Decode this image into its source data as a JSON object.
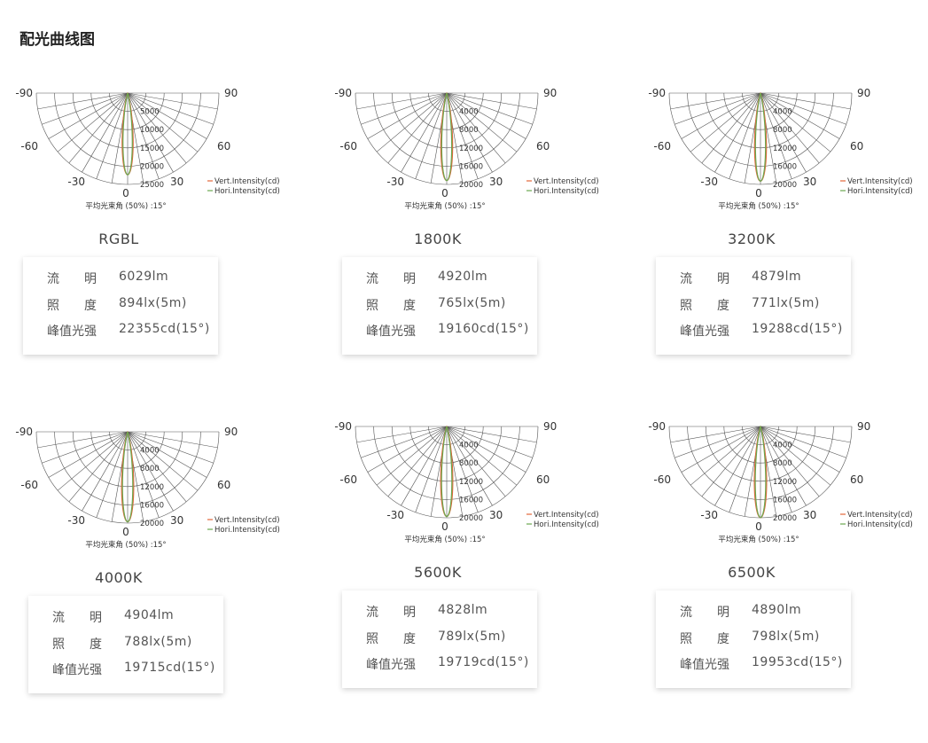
{
  "page_title": "配光曲线图",
  "colors": {
    "vertical": "#e2663a",
    "horizontal": "#6aa84f",
    "grid": "#555555"
  },
  "chart_data": [
    {
      "type": "polar",
      "name": "RGBL",
      "angle_labels": {
        "left_90": "-90",
        "right_90": "90",
        "left_60": "-60",
        "right_60": "60",
        "left_30": "-30",
        "right_30": "30",
        "zero": "0"
      },
      "radial_ticks": [
        5000,
        10000,
        15000,
        20000,
        25000
      ],
      "rmax": 25000,
      "beam_angle_label": "平均光束角 (50%) :15°",
      "series": [
        {
          "name": "Vert.Intensity(cd)",
          "peak": 22355,
          "beam_angle": 15
        },
        {
          "name": "Hori.Intensity(cd)",
          "peak": 22355,
          "beam_angle": 15
        }
      ],
      "specs": [
        {
          "label": "流　　明",
          "value": "6029lm"
        },
        {
          "label": "照　　度",
          "value": "894lx(5m)"
        },
        {
          "label": "峰值光强",
          "value": "22355cd(15°)"
        }
      ]
    },
    {
      "type": "polar",
      "name": "1800K",
      "angle_labels": {
        "left_90": "-90",
        "right_90": "90",
        "left_60": "-60",
        "right_60": "60",
        "left_30": "-30",
        "right_30": "30",
        "zero": "0"
      },
      "radial_ticks": [
        4000,
        8000,
        12000,
        16000,
        20000
      ],
      "rmax": 20000,
      "beam_angle_label": "平均光束角 (50%) :15°",
      "series": [
        {
          "name": "Vert.Intensity(cd)",
          "peak": 19160,
          "beam_angle": 15
        },
        {
          "name": "Hori.Intensity(cd)",
          "peak": 19160,
          "beam_angle": 15
        }
      ],
      "specs": [
        {
          "label": "流　　明",
          "value": "4920lm"
        },
        {
          "label": "照　　度",
          "value": "765lx(5m)"
        },
        {
          "label": "峰值光强",
          "value": "19160cd(15°)"
        }
      ]
    },
    {
      "type": "polar",
      "name": "3200K",
      "angle_labels": {
        "left_90": "-90",
        "right_90": "90",
        "left_60": "-60",
        "right_60": "60",
        "left_30": "-30",
        "right_30": "30",
        "zero": "0"
      },
      "radial_ticks": [
        4000,
        8000,
        12000,
        16000,
        20000
      ],
      "rmax": 20000,
      "beam_angle_label": "平均光束角 (50%) :15°",
      "series": [
        {
          "name": "Vert.Intensity(cd)",
          "peak": 19288,
          "beam_angle": 15
        },
        {
          "name": "Hori.Intensity(cd)",
          "peak": 19288,
          "beam_angle": 15
        }
      ],
      "specs": [
        {
          "label": "流　　明",
          "value": "4879lm"
        },
        {
          "label": "照　　度",
          "value": "771lx(5m)"
        },
        {
          "label": "峰值光强",
          "value": "19288cd(15°)"
        }
      ]
    },
    {
      "type": "polar",
      "name": "4000K",
      "angle_labels": {
        "left_90": "-90",
        "right_90": "90",
        "left_60": "-60",
        "right_60": "60",
        "left_30": "-30",
        "right_30": "30",
        "zero": "0"
      },
      "radial_ticks": [
        4000,
        8000,
        12000,
        16000,
        20000
      ],
      "rmax": 20000,
      "beam_angle_label": "平均光束角 (50%) :15°",
      "series": [
        {
          "name": "Vert.Intensity(cd)",
          "peak": 19715,
          "beam_angle": 15
        },
        {
          "name": "Hori.Intensity(cd)",
          "peak": 19715,
          "beam_angle": 15
        }
      ],
      "specs": [
        {
          "label": "流　　明",
          "value": "4904lm"
        },
        {
          "label": "照　　度",
          "value": "788lx(5m)"
        },
        {
          "label": "峰值光强",
          "value": "19715cd(15°)"
        }
      ]
    },
    {
      "type": "polar",
      "name": "5600K",
      "angle_labels": {
        "left_90": "-90",
        "right_90": "90",
        "left_60": "-60",
        "right_60": "60",
        "left_30": "-30",
        "right_30": "30",
        "zero": "0"
      },
      "radial_ticks": [
        4000,
        8000,
        12000,
        16000,
        20000
      ],
      "rmax": 20000,
      "beam_angle_label": "平均光束角 (50%) :15°",
      "series": [
        {
          "name": "Vert.Intensity(cd)",
          "peak": 19719,
          "beam_angle": 15
        },
        {
          "name": "Hori.Intensity(cd)",
          "peak": 19719,
          "beam_angle": 15
        }
      ],
      "specs": [
        {
          "label": "流　　明",
          "value": "4828lm"
        },
        {
          "label": "照　　度",
          "value": "789lx(5m)"
        },
        {
          "label": "峰值光强",
          "value": "19719cd(15°)"
        }
      ]
    },
    {
      "type": "polar",
      "name": "6500K",
      "angle_labels": {
        "left_90": "-90",
        "right_90": "90",
        "left_60": "-60",
        "right_60": "60",
        "left_30": "-30",
        "right_30": "30",
        "zero": "0"
      },
      "radial_ticks": [
        4000,
        8000,
        12000,
        16000,
        20000
      ],
      "rmax": 20000,
      "beam_angle_label": "平均光束角 (50%) :15°",
      "series": [
        {
          "name": "Vert.Intensity(cd)",
          "peak": 19953,
          "beam_angle": 15
        },
        {
          "name": "Hori.Intensity(cd)",
          "peak": 19953,
          "beam_angle": 15
        }
      ],
      "specs": [
        {
          "label": "流　　明",
          "value": "4890lm"
        },
        {
          "label": "照　　度",
          "value": "798lx(5m)"
        },
        {
          "label": "峰值光强",
          "value": "19953cd(15°)"
        }
      ]
    }
  ]
}
